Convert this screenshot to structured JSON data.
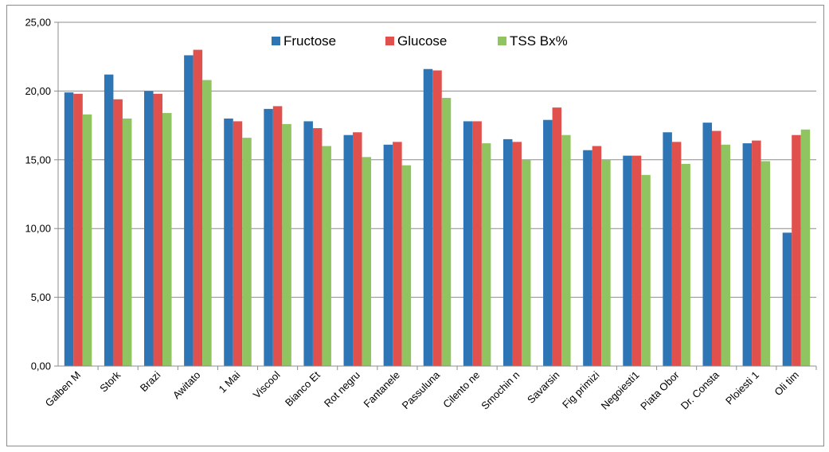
{
  "chart_data": {
    "type": "bar",
    "title": "",
    "xlabel": "",
    "ylabel": "",
    "ylim": [
      0,
      25
    ],
    "yticks": [
      "0,00",
      "5,00",
      "10,00",
      "15,00",
      "20,00",
      "25,00"
    ],
    "grid": true,
    "legend_position": "top",
    "categories": [
      "Galben M",
      "Stork",
      "Brazi",
      "Awitato",
      "1 Mai",
      "Viscool",
      "Bianco Et",
      "Rot negru",
      "Fantanele",
      "Passuluna",
      "Cilento ne",
      "Smochin n",
      "Savarsin",
      "Fig primizi",
      "Negoiesti1",
      "Piata Obor",
      "Dr. Consta",
      "Ploiesti 1",
      "Oli tim"
    ],
    "series": [
      {
        "name": "Fructose",
        "color": "#2e75b6",
        "values": [
          19.9,
          21.2,
          20.0,
          22.6,
          18.0,
          18.7,
          17.8,
          16.8,
          16.1,
          21.6,
          17.8,
          16.5,
          17.9,
          15.7,
          15.3,
          17.0,
          17.7,
          16.2,
          9.7
        ]
      },
      {
        "name": "Glucose",
        "color": "#e0504d",
        "values": [
          19.8,
          19.4,
          19.8,
          23.0,
          17.8,
          18.9,
          17.3,
          17.0,
          16.3,
          21.5,
          17.8,
          16.3,
          18.8,
          16.0,
          15.3,
          16.3,
          17.1,
          16.4,
          16.8
        ]
      },
      {
        "name": "TSS Bx%",
        "color": "#8fc460",
        "values": [
          18.3,
          18.0,
          18.4,
          20.8,
          16.6,
          17.6,
          16.0,
          15.2,
          14.6,
          19.5,
          16.2,
          15.0,
          16.8,
          15.0,
          13.9,
          14.7,
          16.1,
          14.9,
          17.2
        ]
      }
    ]
  }
}
